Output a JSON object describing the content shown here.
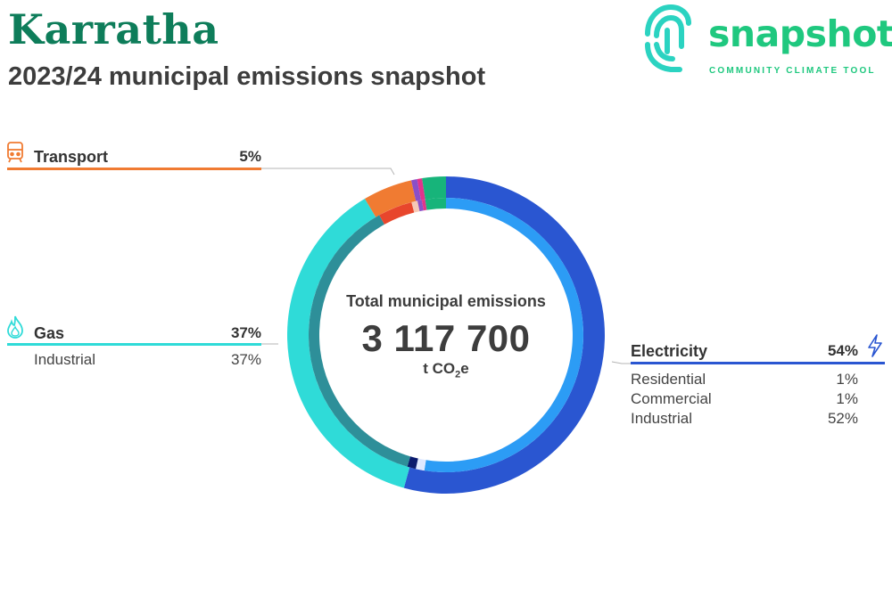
{
  "header": {
    "title": "Karratha",
    "subtitle": "2023/24 municipal emissions snapshot"
  },
  "logo": {
    "word": "snapshot",
    "tagline": "COMMUNITY CLIMATE TOOL",
    "color": "#1fc87f"
  },
  "center": {
    "heading": "Total municipal emissions",
    "value": "3 117 700",
    "unit_prefix": "t CO",
    "unit_sub": "2",
    "unit_suffix": "e"
  },
  "groups": {
    "transport": {
      "name": "Transport",
      "percent": "5%",
      "icon": "train-icon",
      "color": "#f07b32",
      "rows": []
    },
    "gas": {
      "name": "Gas",
      "percent": "37%",
      "icon": "flame-icon",
      "color": "#2fdbd8",
      "rows": [
        {
          "label": "Industrial",
          "value": "37%"
        }
      ]
    },
    "electricity": {
      "name": "Electricity",
      "percent": "54%",
      "icon": "lightning-icon",
      "color": "#2a56d1",
      "rows": [
        {
          "label": "Residential",
          "value": "1%"
        },
        {
          "label": "Commercial",
          "value": "1%"
        },
        {
          "label": "Industrial",
          "value": "52%"
        }
      ]
    }
  },
  "chart_data": {
    "type": "pie",
    "variant": "donut, two rings",
    "total": 3117700,
    "unit": "t CO2e",
    "outer_ring": [
      {
        "name": "Electricity",
        "value": 54,
        "color": "#2a56d1"
      },
      {
        "name": "Gas",
        "value": 37,
        "color": "#2fdbd8"
      },
      {
        "name": "Transport",
        "value": 5,
        "color": "#f07b32"
      },
      {
        "name": "",
        "value": 0.6,
        "color": "#8b4fc7"
      },
      {
        "name": "",
        "value": 0.5,
        "color": "#e0338c"
      },
      {
        "name": "",
        "value": 2.4,
        "color": "#17b47a"
      }
    ],
    "inner_ring": [
      {
        "name": "Electricity Industrial",
        "value": 52,
        "color": "#2c9cf5"
      },
      {
        "name": "Electricity Commercial",
        "value": 1,
        "color": "#dfe8ff"
      },
      {
        "name": "Electricity Residential",
        "value": 1,
        "color": "#0a1a6e"
      },
      {
        "name": "Gas Industrial",
        "value": 37,
        "color": "#2e8f99"
      },
      {
        "name": "Transport",
        "value": 4,
        "color": "#e8462c"
      },
      {
        "name": "",
        "value": 0.7,
        "color": "#f6c9b6"
      },
      {
        "name": "",
        "value": 0.5,
        "color": "#8b4fc7"
      },
      {
        "name": "",
        "value": 0.4,
        "color": "#e0338c"
      },
      {
        "name": "",
        "value": 2.4,
        "color": "#17b47a"
      }
    ]
  }
}
